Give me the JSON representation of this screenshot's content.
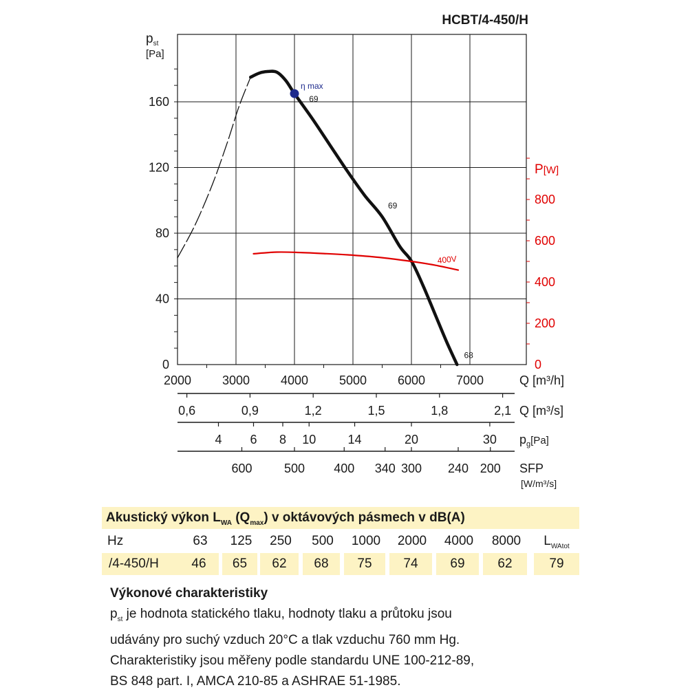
{
  "model": "HCBT/4-450/H",
  "chart_data": {
    "type": "line",
    "xlabel": "Q [m³/h]",
    "xlim": [
      2000,
      7000
    ],
    "xticks": [
      "2000",
      "3000",
      "4000",
      "5000",
      "6000",
      "7000"
    ],
    "ylabel_main": "p",
    "ylabel_sub": "st",
    "ylabel_unit": "[Pa]",
    "ylim": [
      0,
      180
    ],
    "yticks": [
      "0",
      "40",
      "80",
      "120",
      "160"
    ],
    "y2label_main": "P",
    "y2label_unit": "[W]",
    "y2ticks": [
      "0",
      "200",
      "400",
      "600",
      "800"
    ],
    "y2lim": [
      0,
      1000
    ],
    "series": [
      {
        "name": "",
        "axis": "left",
        "style": "dashed",
        "color": "#111111",
        "x": [
          2000,
          2300,
          2600,
          2850,
          3050,
          3250
        ],
        "y": [
          65,
          85,
          110,
          135,
          157,
          175
        ]
      },
      {
        "name": "",
        "axis": "left",
        "style": "solid",
        "color": "#111111",
        "x": [
          3250,
          3400,
          3550,
          3700,
          3850,
          4000,
          4300,
          4600,
          4900,
          5200,
          5500,
          5800,
          6000,
          6200,
          6400,
          6600,
          6780
        ],
        "y": [
          175,
          177.5,
          178.5,
          178,
          173,
          165,
          150,
          134,
          118,
          103,
          90,
          72,
          63,
          48,
          31,
          14,
          0
        ]
      },
      {
        "name": "",
        "axis": "right",
        "style": "solid",
        "color": "#e00000",
        "x": [
          3300,
          3700,
          4100,
          4500,
          5000,
          5500,
          6000,
          6400,
          6800
        ],
        "y": [
          537,
          545,
          543,
          538,
          530,
          518,
          500,
          482,
          458
        ]
      }
    ],
    "eta_max": {
      "label": "η max",
      "x": 4000,
      "y": 165,
      "color": "#1d2a8c"
    },
    "annotations": [
      {
        "text": "69",
        "x": 4250,
        "y": 160
      },
      {
        "text": "69",
        "x": 5600,
        "y": 95
      },
      {
        "text": "400V",
        "x": 6450,
        "y": 490,
        "axis": "right",
        "color": "#e00000"
      },
      {
        "text": "68",
        "x": 6900,
        "y": 4
      }
    ],
    "secondary_axes": [
      {
        "label": "Q [m³/s]",
        "ticks": [
          {
            "text": "0,6",
            "x": 2160
          },
          {
            "text": "0,9",
            "x": 3240
          },
          {
            "text": "1,2",
            "x": 4320
          },
          {
            "text": "1,5",
            "x": 5400
          },
          {
            "text": "1,8",
            "x": 6480
          },
          {
            "text": "2,1",
            "x": 7560
          }
        ]
      },
      {
        "label": "p",
        "label_sub": "g",
        "label_unit": "[Pa]",
        "ticks": [
          {
            "text": "4",
            "x": 2700
          },
          {
            "text": "6",
            "x": 3300
          },
          {
            "text": "8",
            "x": 3800
          },
          {
            "text": "10",
            "x": 4250
          },
          {
            "text": "14",
            "x": 5030
          },
          {
            "text": "20",
            "x": 6000
          },
          {
            "text": "30",
            "x": 7340
          }
        ]
      },
      {
        "label": "SFP",
        "label_unit": "[W/m³/s]",
        "ticks": [
          {
            "text": "600",
            "x": 3100
          },
          {
            "text": "500",
            "x": 4000
          },
          {
            "text": "400",
            "x": 4850
          },
          {
            "text": "340",
            "x": 5550
          },
          {
            "text": "300",
            "x": 6000
          },
          {
            "text": "240",
            "x": 6800
          },
          {
            "text": "200",
            "x": 7350
          }
        ]
      }
    ]
  },
  "acoustics": {
    "title_pre": "Akustický výkon L",
    "title_sub1": "WA",
    "title_mid": " (Q",
    "title_sub2": "max",
    "title_post": ") v oktávových pásmech v dB(A)",
    "hz_label": "Hz",
    "bands": [
      "63",
      "125",
      "250",
      "500",
      "1000",
      "2000",
      "4000",
      "8000"
    ],
    "total_label": "L",
    "total_sub": "WAtot",
    "row_label": "/4-450/H",
    "values": [
      "46",
      "65",
      "62",
      "68",
      "75",
      "74",
      "69",
      "62"
    ],
    "total_value": "79"
  },
  "description": {
    "title": "Výkonové charakteristiky",
    "p_symbol": "p",
    "p_sub": "st",
    "line1": " je hodnota statického tlaku, hodnoty tlaku a průtoku jsou",
    "line2": "udávány pro suchý vzduch 20°C a tlak vzduchu 760 mm Hg.",
    "line3": "Charakteristiky jsou měřeny podle standardu UNE 100-212-89,",
    "line4": "BS 848 part. I, AMCA 210-85 a ASHRAE 51-1985."
  }
}
